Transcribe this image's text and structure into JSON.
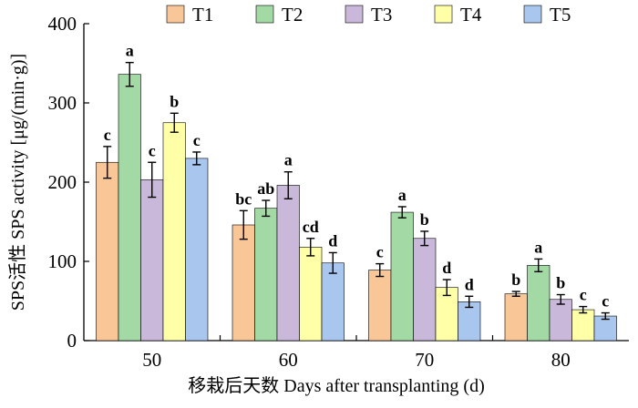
{
  "chart_data": {
    "type": "bar",
    "title": "",
    "xlabel": "移栽后天数 Days after transplanting (d)",
    "ylabel": "SPS活性 SPS activity [μg/(min·g)]",
    "ylim": [
      0,
      400
    ],
    "yticks": [
      "0",
      "100",
      "200",
      "300",
      "400"
    ],
    "categories": [
      "50",
      "60",
      "70",
      "80"
    ],
    "legend_position": "top",
    "grid": false,
    "series": [
      {
        "name": "T1",
        "color": "#F9C697",
        "values": [
          225,
          146,
          89,
          59
        ],
        "errors": [
          20,
          18,
          8,
          3
        ],
        "labels": [
          "c",
          "bc",
          "c",
          "b"
        ]
      },
      {
        "name": "T2",
        "color": "#A3D9A5",
        "values": [
          336,
          167,
          162,
          95
        ],
        "errors": [
          15,
          10,
          7,
          8
        ],
        "labels": [
          "a",
          "ab",
          "a",
          "a"
        ]
      },
      {
        "name": "T3",
        "color": "#C9B8DA",
        "values": [
          203,
          196,
          129,
          52
        ],
        "errors": [
          22,
          17,
          9,
          6
        ],
        "labels": [
          "c",
          "a",
          "b",
          "b"
        ]
      },
      {
        "name": "T4",
        "color": "#FFFFA8",
        "values": [
          275,
          118,
          67,
          39
        ],
        "errors": [
          12,
          11,
          10,
          4
        ],
        "labels": [
          "b",
          "cd",
          "d",
          "c"
        ]
      },
      {
        "name": "T5",
        "color": "#A9C6EF",
        "values": [
          230,
          98,
          49,
          31
        ],
        "errors": [
          8,
          13,
          7,
          4
        ],
        "labels": [
          "c",
          "d",
          "d",
          "c"
        ]
      }
    ]
  }
}
